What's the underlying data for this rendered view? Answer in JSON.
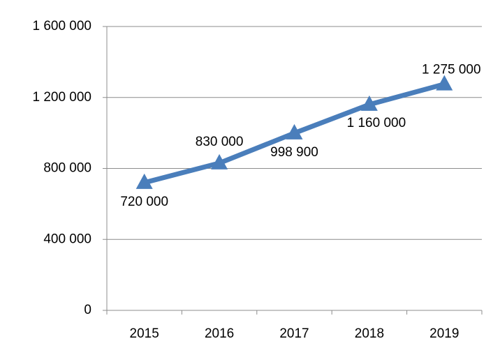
{
  "chart_data": {
    "type": "line",
    "categories": [
      "2015",
      "2016",
      "2017",
      "2018",
      "2019"
    ],
    "values": [
      720000,
      830000,
      998900,
      1160000,
      1275000
    ],
    "value_labels": [
      "720 000",
      "830 000",
      "998 900",
      "1 160 000",
      "1 275 000"
    ],
    "color": "#4a7ebb",
    "marker": "triangle",
    "ylim": [
      0,
      1600000
    ],
    "yticks": [
      0,
      {
        "value": 400000,
        "label": "400 000"
      },
      {
        "value": 800000,
        "label": "800 000"
      },
      {
        "value": 1200000,
        "label": "1 200 000"
      },
      {
        "value": 1600000,
        "label": "1 600 000"
      }
    ],
    "grid": true
  }
}
